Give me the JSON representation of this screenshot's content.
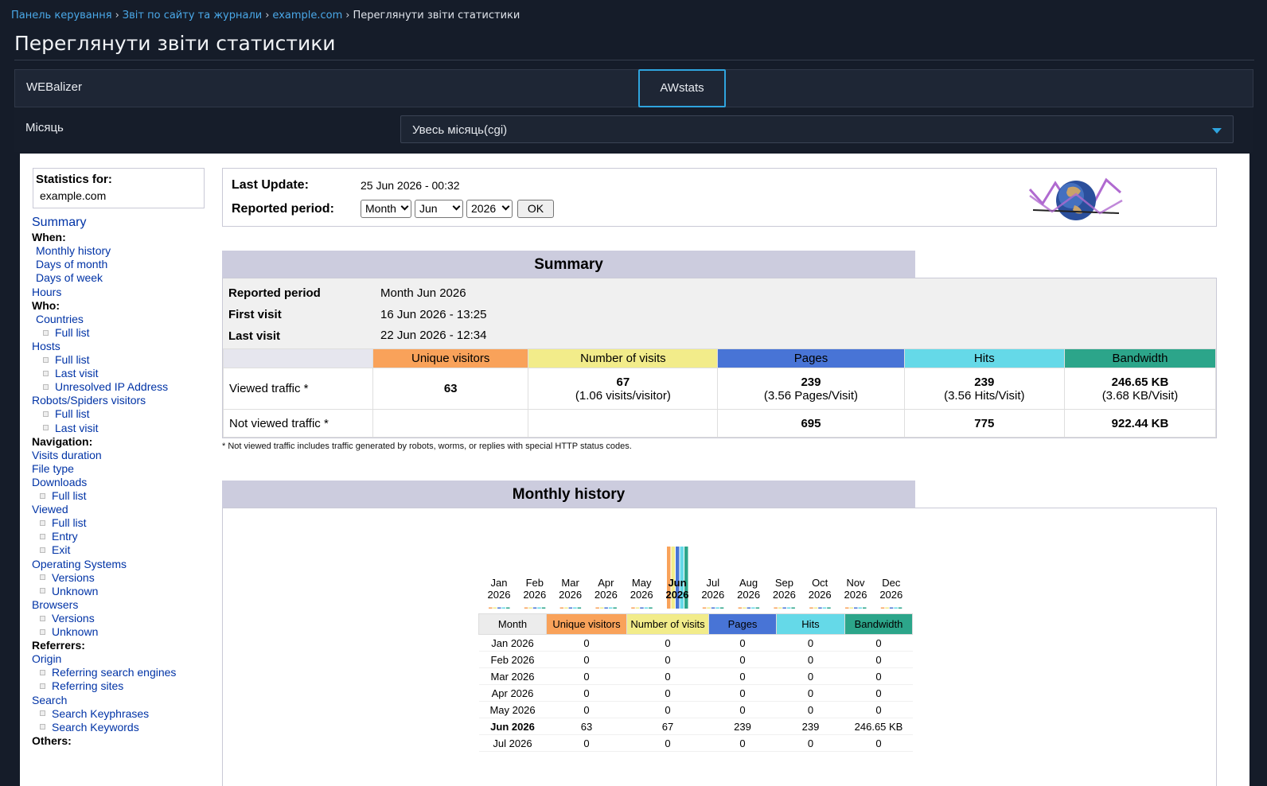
{
  "breadcrumb": {
    "items": [
      "Панель керування",
      "Звіт по сайту та журнали",
      "example.com"
    ],
    "current": "Переглянути звіти статистики",
    "separator": "›"
  },
  "page_title": "Переглянути звіти статистики",
  "tabs": [
    {
      "label": "WEBalizer",
      "active": false
    },
    {
      "label": "AWstats",
      "active": true
    }
  ],
  "month_filter": {
    "label": "Місяць",
    "value": "Увесь місяць(cgi)"
  },
  "awstats": {
    "statistics_for_label": "Statistics for:",
    "domain": "example.com",
    "last_update_label": "Last Update:",
    "last_update": "25 Jun 2026 - 00:32",
    "reported_period_label": "Reported period:",
    "period_type": "Month",
    "period_month": "Jun",
    "period_year": "2026",
    "ok_label": "OK",
    "menu": [
      {
        "text": "Summary",
        "kind": "link-big",
        "indent": 0
      },
      {
        "text": "When:",
        "kind": "heading",
        "indent": 0
      },
      {
        "text": "Monthly history",
        "kind": "link",
        "indent": 1
      },
      {
        "text": "Days of month",
        "kind": "link",
        "indent": 1
      },
      {
        "text": "Days of week",
        "kind": "link",
        "indent": 1
      },
      {
        "text": "Hours",
        "kind": "link",
        "indent": 0
      },
      {
        "text": "Who:",
        "kind": "heading",
        "indent": 0
      },
      {
        "text": "Countries",
        "kind": "link",
        "indent": 1
      },
      {
        "text": "Full list",
        "kind": "sub",
        "indent": 2
      },
      {
        "text": "Hosts",
        "kind": "link",
        "indent": 0
      },
      {
        "text": "Full list",
        "kind": "sub",
        "indent": 2
      },
      {
        "text": "Last visit",
        "kind": "sub",
        "indent": 2
      },
      {
        "text": "Unresolved IP Address",
        "kind": "sub",
        "indent": 2
      },
      {
        "text": "Robots/Spiders visitors",
        "kind": "link",
        "indent": 0
      },
      {
        "text": "Full list",
        "kind": "sub",
        "indent": 2
      },
      {
        "text": "Last visit",
        "kind": "sub",
        "indent": 2
      },
      {
        "text": "Navigation:",
        "kind": "heading",
        "indent": 0
      },
      {
        "text": "Visits duration",
        "kind": "link",
        "indent": 0
      },
      {
        "text": "File type",
        "kind": "link",
        "indent": 0
      },
      {
        "text": "Downloads",
        "kind": "link",
        "indent": 0
      },
      {
        "text": "Full list",
        "kind": "sub",
        "indent": 1
      },
      {
        "text": "Viewed",
        "kind": "link",
        "indent": 0
      },
      {
        "text": "Full list",
        "kind": "sub",
        "indent": 1
      },
      {
        "text": "Entry",
        "kind": "sub",
        "indent": 1
      },
      {
        "text": "Exit",
        "kind": "sub",
        "indent": 1
      },
      {
        "text": "Operating Systems",
        "kind": "link",
        "indent": 0
      },
      {
        "text": "Versions",
        "kind": "sub",
        "indent": 1
      },
      {
        "text": "Unknown",
        "kind": "sub",
        "indent": 1
      },
      {
        "text": "Browsers",
        "kind": "link",
        "indent": 0
      },
      {
        "text": "Versions",
        "kind": "sub",
        "indent": 1
      },
      {
        "text": "Unknown",
        "kind": "sub",
        "indent": 1
      },
      {
        "text": "Referrers:",
        "kind": "heading",
        "indent": 0
      },
      {
        "text": "Origin",
        "kind": "link",
        "indent": 0
      },
      {
        "text": "Referring search engines",
        "kind": "sub",
        "indent": 1
      },
      {
        "text": "Referring sites",
        "kind": "sub",
        "indent": 1
      },
      {
        "text": "Search",
        "kind": "link",
        "indent": 0
      },
      {
        "text": "Search Keyphrases",
        "kind": "sub",
        "indent": 1
      },
      {
        "text": "Search Keywords",
        "kind": "sub",
        "indent": 1
      },
      {
        "text": "Others:",
        "kind": "heading",
        "indent": 0
      }
    ],
    "summary": {
      "title": "Summary",
      "reported_period_label": "Reported period",
      "reported_period": "Month Jun 2026",
      "first_visit_label": "First visit",
      "first_visit": "16 Jun 2026 - 13:25",
      "last_visit_label": "Last visit",
      "last_visit": "22 Jun 2026 - 12:34",
      "columns": [
        "Unique visitors",
        "Number of visits",
        "Pages",
        "Hits",
        "Bandwidth"
      ],
      "viewed_label": "Viewed traffic *",
      "viewed": {
        "unique": "63",
        "visits": "67",
        "visits_sub": "(1.06 visits/visitor)",
        "pages": "239",
        "pages_sub": "(3.56 Pages/Visit)",
        "hits": "239",
        "hits_sub": "(3.56 Hits/Visit)",
        "bandwidth": "246.65 KB",
        "bandwidth_sub": "(3.68 KB/Visit)"
      },
      "not_viewed_label": "Not viewed traffic *",
      "not_viewed": {
        "pages": "695",
        "hits": "775",
        "bandwidth": "922.44 KB"
      },
      "footnote": "* Not viewed traffic includes traffic generated by robots, worms, or replies with special HTTP status codes."
    },
    "monthly_history": {
      "title": "Monthly history",
      "table_headers": [
        "Month",
        "Unique visitors",
        "Number of visits",
        "Pages",
        "Hits",
        "Bandwidth"
      ],
      "rows": [
        [
          "Jan 2026",
          "0",
          "0",
          "0",
          "0",
          "0"
        ],
        [
          "Feb 2026",
          "0",
          "0",
          "0",
          "0",
          "0"
        ],
        [
          "Mar 2026",
          "0",
          "0",
          "0",
          "0",
          "0"
        ],
        [
          "Apr 2026",
          "0",
          "0",
          "0",
          "0",
          "0"
        ],
        [
          "May 2026",
          "0",
          "0",
          "0",
          "0",
          "0"
        ],
        [
          "Jun 2026",
          "63",
          "67",
          "239",
          "239",
          "246.65 KB"
        ],
        [
          "Jul 2026",
          "0",
          "0",
          "0",
          "0",
          "0"
        ]
      ],
      "current_row": 5
    }
  },
  "colors": {
    "unique_visitors": "#f9a25a",
    "visits": "#f2ec8a",
    "pages": "#4874d6",
    "hits": "#65d9e8",
    "bandwidth": "#2ca58a",
    "accent": "#2fa4de"
  },
  "chart_data": {
    "type": "bar",
    "categories": [
      "Jan 2026",
      "Feb 2026",
      "Mar 2026",
      "Apr 2026",
      "May 2026",
      "Jun 2026",
      "Jul 2026",
      "Aug 2026",
      "Sep 2026",
      "Oct 2026",
      "Nov 2026",
      "Dec 2026"
    ],
    "month_labels": [
      "Jan",
      "Feb",
      "Mar",
      "Apr",
      "May",
      "Jun",
      "Jul",
      "Aug",
      "Sep",
      "Oct",
      "Nov",
      "Dec"
    ],
    "year_label": "2026",
    "series": [
      {
        "name": "Unique visitors",
        "values": [
          0,
          0,
          0,
          0,
          0,
          63,
          0,
          0,
          0,
          0,
          0,
          0
        ]
      },
      {
        "name": "Number of visits",
        "values": [
          0,
          0,
          0,
          0,
          0,
          67,
          0,
          0,
          0,
          0,
          0,
          0
        ]
      },
      {
        "name": "Pages",
        "values": [
          0,
          0,
          0,
          0,
          0,
          239,
          0,
          0,
          0,
          0,
          0,
          0
        ]
      },
      {
        "name": "Hits",
        "values": [
          0,
          0,
          0,
          0,
          0,
          239,
          0,
          0,
          0,
          0,
          0,
          0
        ]
      },
      {
        "name": "Bandwidth",
        "values": [
          0,
          0,
          0,
          0,
          0,
          246.65,
          0,
          0,
          0,
          0,
          0,
          0
        ]
      }
    ],
    "highlight": "Jun 2026"
  }
}
